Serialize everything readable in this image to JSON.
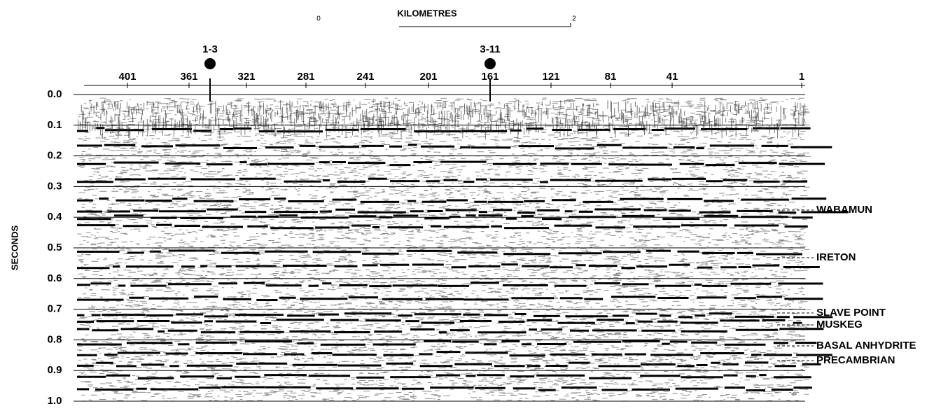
{
  "scale_bar": {
    "title": "KILOMETRES",
    "start": "0",
    "end": "2"
  },
  "y_axis": {
    "label": "SECONDS",
    "ticks": [
      "0.0",
      "0.1",
      "0.2",
      "0.3",
      "0.4",
      "0.5",
      "0.6",
      "0.7",
      "0.8",
      "0.9",
      "1.0"
    ]
  },
  "shotpoints": [
    "401",
    "361",
    "321",
    "281",
    "241",
    "201",
    "161",
    "121",
    "81",
    "41",
    "1"
  ],
  "wells": [
    {
      "label": "1-3"
    },
    {
      "label": "3-11"
    }
  ],
  "horizons": [
    {
      "label": "WABAMUN"
    },
    {
      "label": "IRETON"
    },
    {
      "label": "SLAVE POINT"
    },
    {
      "label": "MUSKEG"
    },
    {
      "label": "BASAL ANHYDRITE"
    },
    {
      "label": "PRECAMBRIAN"
    }
  ]
}
